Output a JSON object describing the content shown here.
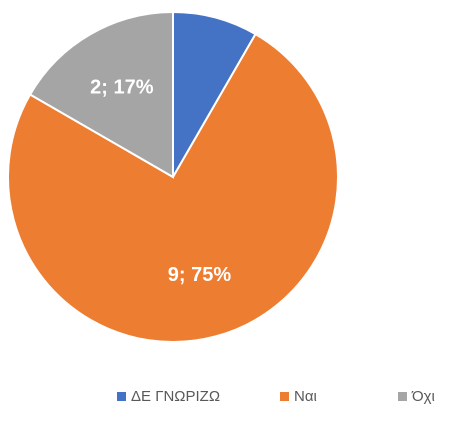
{
  "chart_data": {
    "type": "pie",
    "categories": [
      "ΔΕ ΓΝΩΡΙΖΩ",
      "Ναι",
      "Όχι"
    ],
    "values": [
      1,
      9,
      2
    ],
    "value_labels": [
      null,
      "9; 75%",
      "2; 17%"
    ],
    "colors": [
      "#4472c4",
      "#ed7d31",
      "#a5a5a5"
    ],
    "legend": "bottom"
  }
}
